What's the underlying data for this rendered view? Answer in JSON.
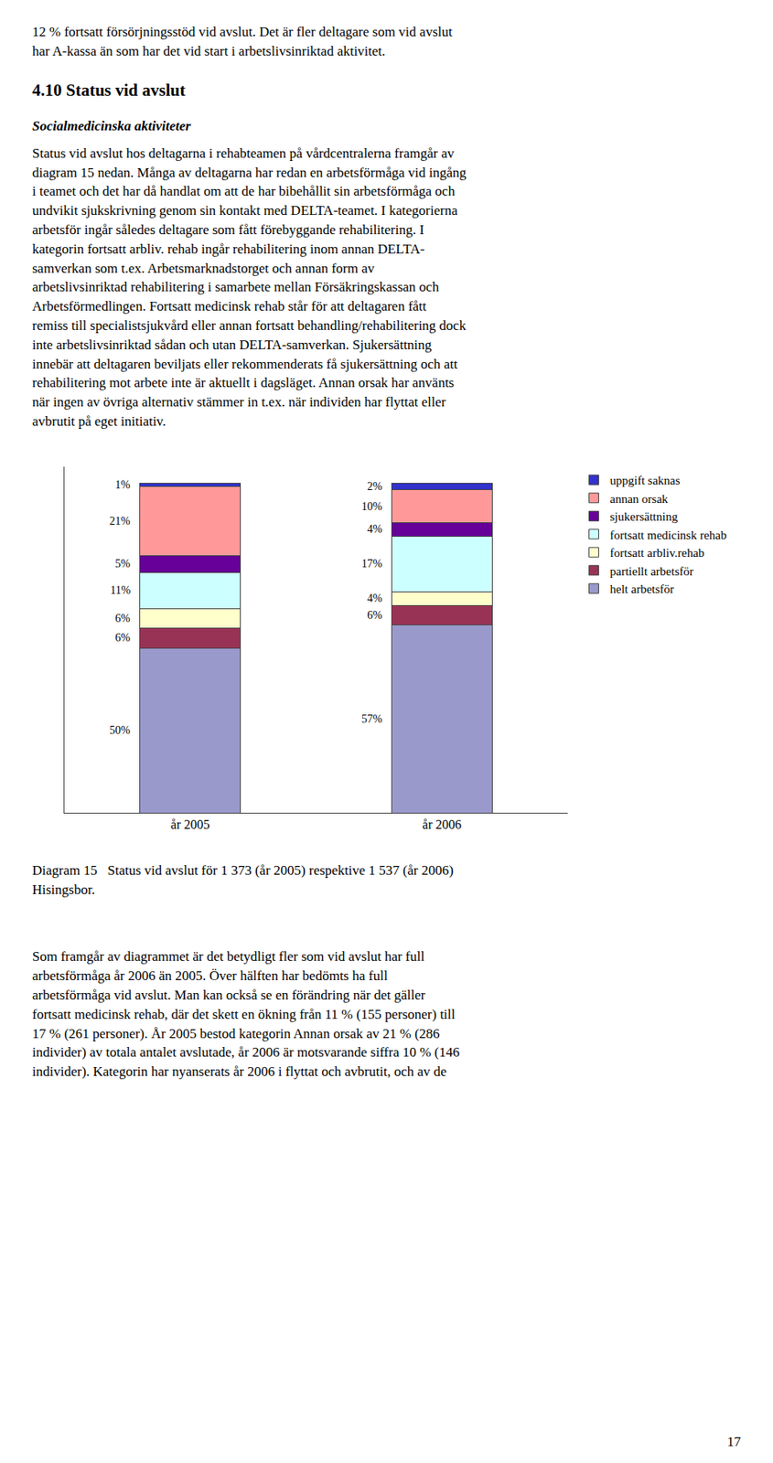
{
  "page": {
    "intro": "12 % fortsatt försörjningsstöd vid avslut. Det är fler deltagare som vid avslut\nhar A-kassa än som har det vid start i arbetslivsinriktad aktivitet.",
    "heading": "4.10 Status vid avslut",
    "subheading": "Socialmedicinska aktiviteter",
    "body": "Status vid avslut hos deltagarna i rehabteamen på vårdcentralerna framgår av\ndiagram 15 nedan. Många av deltagarna har redan en arbetsförmåga vid ingång\ni teamet och det har då handlat om att de har bibehållit sin arbetsförmåga och\nundvikit sjukskrivning genom sin kontakt med DELTA-teamet. I kategorierna\narbetsför ingår således deltagare som fått förebyggande rehabilitering. I\nkategorin fortsatt arbliv. rehab ingår rehabilitering inom annan DELTA-\nsamverkan som t.ex. Arbetsmarknadstorget och annan form av\narbetslivsinriktad rehabilitering i samarbete mellan Försäkringskassan och\nArbetsförmedlingen. Fortsatt medicinsk rehab står för att deltagaren fått\nremiss till specialistsjukvård eller annan fortsatt behandling/rehabilitering dock\ninte arbetslivsinriktad sådan och utan DELTA-samverkan. Sjukersättning\ninnebär att deltagaren beviljats eller rekommenderats få sjukersättning och att\nrehabilitering mot arbete inte är aktuellt i dagsläget. Annan orsak har använts\nnär ingen av övriga alternativ stämmer in t.ex. när individen har flyttat eller\navbrutit på eget initiativ.",
    "bottom": "Som framgår av diagrammet är det betydligt fler som vid avslut har full\narbetsförmåga år 2006 än 2005. Över hälften har bedömts ha full\narbetsförmåga vid avslut. Man kan också se en förändring när det gäller\nfortsatt medicinsk rehab, där det skett en ökning från 11 % (155 personer) till\n17 % (261 personer). År 2005 bestod kategorin Annan orsak av 21 % (286\nindivider) av totala antalet avslutade, år 2006 är motsvarande siffra 10 % (146\nindivider). Kategorin har nyanserats år 2006 i flyttat och avbrutit, och av de",
    "page_number": "17"
  },
  "chart_data": {
    "type": "bar",
    "title": "Diagram 15   Status vid avslut för 1 373 (år 2005) respektive 1 537 (år 2006)\nHisingsbor.",
    "categories": [
      "år 2005",
      "år 2006"
    ],
    "stacked": true,
    "data_labels": true,
    "series": [
      {
        "name": "helt arbetsför",
        "color": "#9999cc",
        "values": [
          50,
          57
        ],
        "value_labels": [
          "50%",
          "57%"
        ]
      },
      {
        "name": "partiellt arbetsför",
        "color": "#993355",
        "values": [
          6,
          6
        ],
        "value_labels": [
          "6%",
          "6%"
        ]
      },
      {
        "name": "fortsatt arbliv.rehab",
        "color": "#ffffcc",
        "values": [
          6,
          4
        ],
        "value_labels": [
          "6%",
          "4%"
        ]
      },
      {
        "name": "fortsatt medicinsk rehab",
        "color": "#ccffff",
        "values": [
          11,
          17
        ],
        "value_labels": [
          "11%",
          "17%"
        ]
      },
      {
        "name": "sjukersättning",
        "color": "#660099",
        "values": [
          5,
          4
        ],
        "value_labels": [
          "5%",
          "4%"
        ]
      },
      {
        "name": "annan orsak",
        "color": "#ff9999",
        "values": [
          21,
          10
        ],
        "value_labels": [
          "21%",
          "10%"
        ]
      },
      {
        "name": "uppgift saknas",
        "color": "#3333cc",
        "values": [
          1,
          2
        ],
        "value_labels": [
          "1%",
          "2%"
        ]
      }
    ],
    "ylim": [
      0,
      105
    ],
    "yticks": [],
    "tick_labels": "x",
    "grid": false,
    "legend": "right"
  }
}
